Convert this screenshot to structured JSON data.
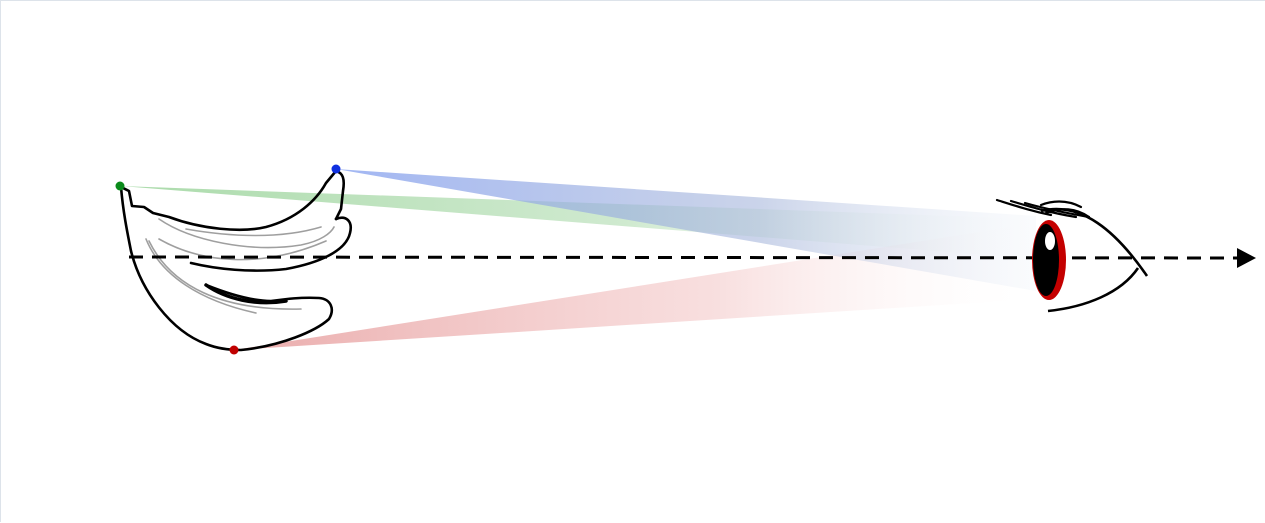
{
  "diagram": {
    "subject": "banana",
    "observer": "eye",
    "colors": {
      "green_point": "#0a8a1a",
      "blue_point": "#1030e0",
      "red_point": "#c00000",
      "green_ray": "#8fcf8f",
      "blue_ray": "#9db2f0",
      "red_ray": "#eba5a5",
      "iris_ring": "#c40000",
      "line": "#000000"
    }
  }
}
